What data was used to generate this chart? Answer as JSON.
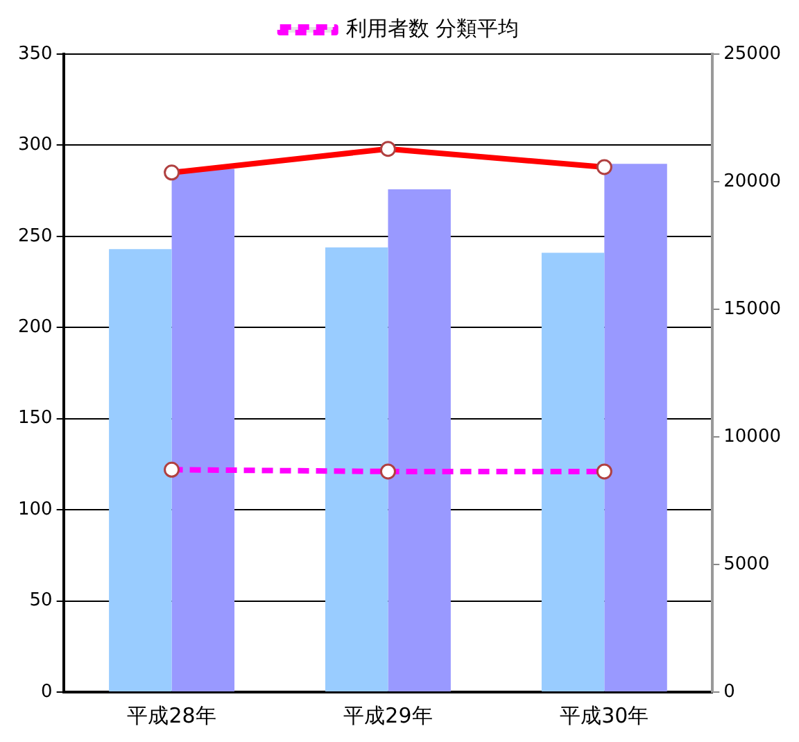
{
  "chart_data": {
    "type": "bar",
    "categories": [
      "平成28年",
      "平成29年",
      "平成30年"
    ],
    "series": [
      {
        "color": "#99ccff",
        "values": [
          243,
          244,
          241
        ]
      },
      {
        "axis": "y2",
        "color": "#9999ff",
        "values": [
          20500,
          19700,
          20700
        ]
      },
      {
        "type": "line",
        "color": "#ff0000",
        "values": [
          285,
          298,
          288
        ],
        "marker": "circle",
        "line_style": "solid"
      },
      {
        "type": "line",
        "name": "利用者数 分類平均",
        "color": "#ff00ff",
        "values": [
          122,
          121,
          121
        ],
        "marker": "circle",
        "line_style": "dashed"
      }
    ],
    "ylim": [
      0,
      350
    ],
    "yticks": [
      0,
      50,
      100,
      150,
      200,
      250,
      300,
      350
    ],
    "y2lim": [
      0,
      25000
    ],
    "y2ticks": [
      0,
      5000,
      10000,
      15000,
      20000,
      25000
    ],
    "grid": "y",
    "legend": "top"
  }
}
